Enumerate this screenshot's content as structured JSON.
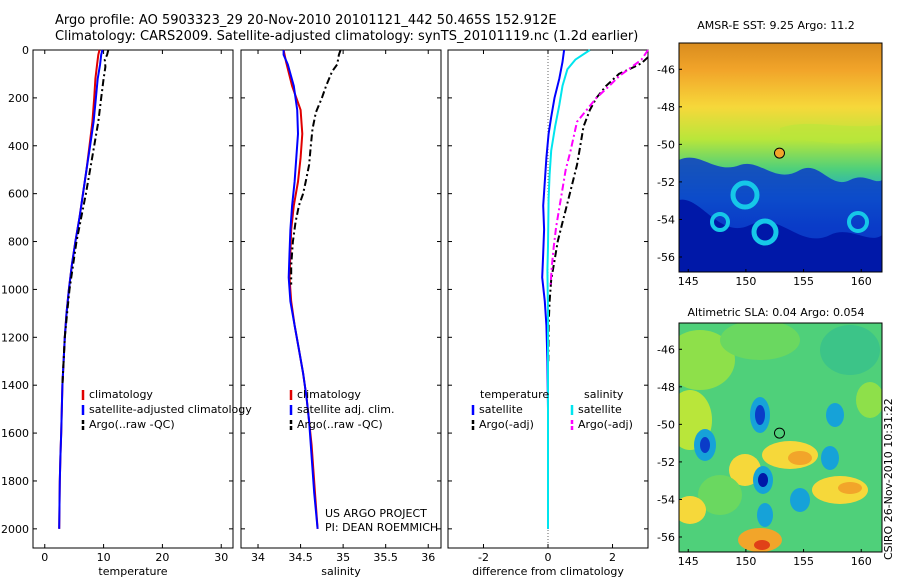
{
  "header": {
    "line1": "Argo profile: AO 5903323_29 20-Nov-2010 20101121_442 50.465S 152.912E",
    "line2": "Climatology: CARS2009. Satellite-adjusted climatology: synTS_20101119.nc (1.2d earlier)"
  },
  "side_label": "CSIRO 26-Nov-2010 10:31:22",
  "credit": {
    "line1": "US ARGO PROJECT",
    "line2": "PI: DEAN ROEMMICH"
  },
  "colors": {
    "climatology": "#e00000",
    "satellite": "#0000ff",
    "argo": "#000000",
    "satellite_salinity": "#00e5ee",
    "argo_salinity": "#ff00ff"
  },
  "chart_data": [
    {
      "type": "line",
      "xlabel": "temperature",
      "xlim": [
        -2,
        32
      ],
      "ylim": [
        0,
        2080
      ],
      "y_reversed": true,
      "xticks": [
        0,
        10,
        20,
        30
      ],
      "yticks": [
        0,
        200,
        400,
        600,
        800,
        1000,
        1200,
        1400,
        1600,
        1800,
        2000
      ],
      "legend_position": "lower-right",
      "series": [
        {
          "name": "climatology",
          "color": "#e00000",
          "dash": "",
          "points": [
            [
              9.3,
              0
            ],
            [
              9.1,
              20
            ],
            [
              8.9,
              60
            ],
            [
              8.6,
              120
            ],
            [
              8.4,
              200
            ],
            [
              8.1,
              300
            ],
            [
              7.6,
              400
            ],
            [
              7.1,
              500
            ],
            [
              6.5,
              600
            ],
            [
              5.9,
              700
            ],
            [
              5.2,
              800
            ],
            [
              4.6,
              900
            ],
            [
              4.1,
              1000
            ],
            [
              3.7,
              1100
            ],
            [
              3.4,
              1200
            ],
            [
              3.2,
              1300
            ],
            [
              3.0,
              1400
            ],
            [
              2.9,
              1500
            ],
            [
              2.8,
              1600
            ],
            [
              2.65,
              1700
            ],
            [
              2.55,
              1800
            ],
            [
              2.5,
              1900
            ],
            [
              2.45,
              2000
            ]
          ]
        },
        {
          "name": "satellite-adjusted climatology",
          "color": "#0000ff",
          "dash": "",
          "points": [
            [
              9.8,
              0
            ],
            [
              9.6,
              20
            ],
            [
              9.4,
              60
            ],
            [
              9.0,
              120
            ],
            [
              8.7,
              200
            ],
            [
              8.3,
              300
            ],
            [
              7.7,
              400
            ],
            [
              7.1,
              500
            ],
            [
              6.5,
              600
            ],
            [
              5.9,
              700
            ],
            [
              5.2,
              800
            ],
            [
              4.6,
              900
            ],
            [
              4.1,
              1000
            ],
            [
              3.7,
              1100
            ],
            [
              3.4,
              1200
            ],
            [
              3.2,
              1300
            ],
            [
              3.0,
              1400
            ],
            [
              2.9,
              1500
            ],
            [
              2.8,
              1600
            ],
            [
              2.65,
              1700
            ],
            [
              2.55,
              1800
            ],
            [
              2.5,
              1900
            ],
            [
              2.45,
              2000
            ]
          ]
        },
        {
          "name": "Argo(..raw -QC)",
          "color": "#000000",
          "dash": "7,3,2,3",
          "points": [
            [
              10.8,
              0
            ],
            [
              10.6,
              20
            ],
            [
              10.2,
              40
            ],
            [
              10.3,
              70
            ],
            [
              10.0,
              120
            ],
            [
              9.6,
              200
            ],
            [
              9.1,
              300
            ],
            [
              8.4,
              400
            ],
            [
              7.7,
              500
            ],
            [
              7.0,
              600
            ],
            [
              6.2,
              700
            ],
            [
              5.4,
              800
            ],
            [
              4.8,
              900
            ],
            [
              4.2,
              1000
            ],
            [
              3.8,
              1100
            ],
            [
              3.4,
              1200
            ],
            [
              3.2,
              1300
            ],
            [
              3.0,
              1400
            ]
          ]
        }
      ]
    },
    {
      "type": "line",
      "xlabel": "salinity",
      "xlim": [
        33.8,
        36.15
      ],
      "ylim": [
        0,
        2080
      ],
      "y_reversed": true,
      "xticks": [
        34,
        34.5,
        35,
        35.5,
        36
      ],
      "yticks": [
        0,
        200,
        400,
        600,
        800,
        1000,
        1200,
        1400,
        1600,
        1800,
        2000
      ],
      "legend_position": "lower-right",
      "series": [
        {
          "name": "climatology",
          "color": "#e00000",
          "dash": "",
          "points": [
            [
              34.3,
              0
            ],
            [
              34.33,
              50
            ],
            [
              34.4,
              150
            ],
            [
              34.5,
              250
            ],
            [
              34.52,
              350
            ],
            [
              34.5,
              450
            ],
            [
              34.47,
              550
            ],
            [
              34.42,
              650
            ],
            [
              34.39,
              750
            ],
            [
              34.38,
              850
            ],
            [
              34.37,
              950
            ],
            [
              34.39,
              1050
            ],
            [
              34.43,
              1150
            ],
            [
              34.48,
              1250
            ],
            [
              34.53,
              1350
            ],
            [
              34.57,
              1450
            ],
            [
              34.6,
              1550
            ],
            [
              34.63,
              1650
            ],
            [
              34.65,
              1750
            ],
            [
              34.67,
              1850
            ],
            [
              34.7,
              2000
            ]
          ]
        },
        {
          "name": "satellite adj. clim.",
          "color": "#0000ff",
          "dash": "",
          "points": [
            [
              34.3,
              0
            ],
            [
              34.3,
              20
            ],
            [
              34.35,
              60
            ],
            [
              34.42,
              150
            ],
            [
              34.46,
              250
            ],
            [
              34.47,
              350
            ],
            [
              34.45,
              450
            ],
            [
              34.43,
              550
            ],
            [
              34.4,
              650
            ],
            [
              34.38,
              750
            ],
            [
              34.37,
              850
            ],
            [
              34.36,
              950
            ],
            [
              34.38,
              1050
            ],
            [
              34.43,
              1150
            ],
            [
              34.48,
              1250
            ],
            [
              34.53,
              1350
            ],
            [
              34.57,
              1450
            ],
            [
              34.6,
              1550
            ],
            [
              34.62,
              1650
            ],
            [
              34.64,
              1750
            ],
            [
              34.66,
              1850
            ],
            [
              34.7,
              2000
            ]
          ]
        },
        {
          "name": "Argo(..raw -QC)",
          "color": "#000000",
          "dash": "7,3,2,3",
          "points": [
            [
              34.97,
              0
            ],
            [
              34.95,
              20
            ],
            [
              34.93,
              60
            ],
            [
              34.87,
              90
            ],
            [
              34.8,
              150
            ],
            [
              34.75,
              200
            ],
            [
              34.68,
              260
            ],
            [
              34.64,
              330
            ],
            [
              34.62,
              400
            ],
            [
              34.6,
              480
            ],
            [
              34.56,
              550
            ],
            [
              34.53,
              600
            ],
            [
              34.48,
              650
            ],
            [
              34.44,
              720
            ],
            [
              34.41,
              800
            ],
            [
              34.39,
              900
            ],
            [
              34.39,
              980
            ]
          ]
        }
      ]
    },
    {
      "type": "line",
      "xlabel": "difference from climatology",
      "xlim": [
        -3.1,
        3.1
      ],
      "ylim": [
        0,
        2080
      ],
      "y_reversed": true,
      "xticks": [
        -2,
        0,
        2
      ],
      "yticks": [
        0,
        200,
        400,
        600,
        800,
        1000,
        1200,
        1400,
        1600,
        1800,
        2000
      ],
      "legend_position": "lower-center",
      "legend_headers": [
        "temperature",
        "salinity"
      ],
      "series": [
        {
          "name": "satellite",
          "group": "temperature",
          "color": "#0000ff",
          "dash": "",
          "points": [
            [
              0.5,
              0
            ],
            [
              0.45,
              50
            ],
            [
              0.35,
              120
            ],
            [
              0.2,
              200
            ],
            [
              0.1,
              280
            ],
            [
              0.02,
              350
            ],
            [
              -0.05,
              450
            ],
            [
              -0.1,
              550
            ],
            [
              -0.15,
              650
            ],
            [
              -0.12,
              750
            ],
            [
              -0.15,
              850
            ],
            [
              -0.18,
              950
            ],
            [
              -0.1,
              1050
            ],
            [
              -0.05,
              1150
            ],
            [
              -0.02,
              1300
            ],
            [
              0,
              1500
            ],
            [
              0,
              2000
            ]
          ]
        },
        {
          "name": "Argo(-adj)",
          "group": "temperature",
          "color": "#000000",
          "dash": "7,3,2,3",
          "points": [
            [
              3.1,
              30
            ],
            [
              2.9,
              55
            ],
            [
              2.6,
              75
            ],
            [
              2.2,
              100
            ],
            [
              1.8,
              150
            ],
            [
              1.5,
              200
            ],
            [
              1.3,
              250
            ],
            [
              1.1,
              320
            ],
            [
              1.0,
              400
            ],
            [
              0.9,
              480
            ],
            [
              0.75,
              560
            ],
            [
              0.6,
              640
            ],
            [
              0.45,
              720
            ],
            [
              0.3,
              800
            ],
            [
              0.2,
              880
            ],
            [
              0.1,
              960
            ],
            [
              0.05,
              1050
            ],
            [
              0.02,
              1150
            ],
            [
              0.01,
              1300
            ]
          ]
        },
        {
          "name": "satellite",
          "group": "salinity",
          "color": "#00e5ee",
          "dash": "",
          "points": [
            [
              1.3,
              0
            ],
            [
              0.85,
              40
            ],
            [
              0.6,
              80
            ],
            [
              0.45,
              150
            ],
            [
              0.35,
              230
            ],
            [
              0.22,
              320
            ],
            [
              0.1,
              420
            ],
            [
              0.05,
              520
            ],
            [
              0.02,
              620
            ],
            [
              0.01,
              720
            ],
            [
              0,
              820
            ],
            [
              -0.02,
              920
            ],
            [
              0,
              1100
            ],
            [
              0,
              1400
            ],
            [
              0,
              2000
            ]
          ]
        },
        {
          "name": "Argo(-adj)",
          "group": "salinity",
          "color": "#ff00ff",
          "dash": "7,3,2,3",
          "points": [
            [
              3.1,
              0
            ],
            [
              2.9,
              40
            ],
            [
              2.6,
              70
            ],
            [
              2.2,
              110
            ],
            [
              1.9,
              150
            ],
            [
              1.5,
              200
            ],
            [
              1.2,
              250
            ],
            [
              0.9,
              300
            ],
            [
              0.8,
              360
            ],
            [
              0.7,
              420
            ],
            [
              0.55,
              500
            ],
            [
              0.45,
              580
            ],
            [
              0.35,
              660
            ],
            [
              0.25,
              740
            ],
            [
              0.18,
              820
            ],
            [
              0.12,
              900
            ],
            [
              0.08,
              980
            ]
          ]
        }
      ]
    },
    {
      "type": "heatmap",
      "title": "AMSR-E SST: 9.25 Argo: 11.2",
      "xlim": [
        144.2,
        161.8
      ],
      "ylim": [
        -56.8,
        -44.6
      ],
      "xticks": [
        145,
        150,
        155,
        160
      ],
      "yticks": [
        -46,
        -48,
        -50,
        -52,
        -54,
        -56
      ],
      "profile_marker": {
        "lon": 152.912,
        "lat": -50.465
      }
    },
    {
      "type": "heatmap",
      "title": "Altimetric SLA: 0.04 Argo: 0.054",
      "xlim": [
        144.2,
        161.8
      ],
      "ylim": [
        -56.8,
        -44.6
      ],
      "xticks": [
        145,
        150,
        155,
        160
      ],
      "yticks": [
        -46,
        -48,
        -50,
        -52,
        -54,
        -56
      ],
      "profile_marker": {
        "lon": 152.912,
        "lat": -50.465
      }
    }
  ]
}
